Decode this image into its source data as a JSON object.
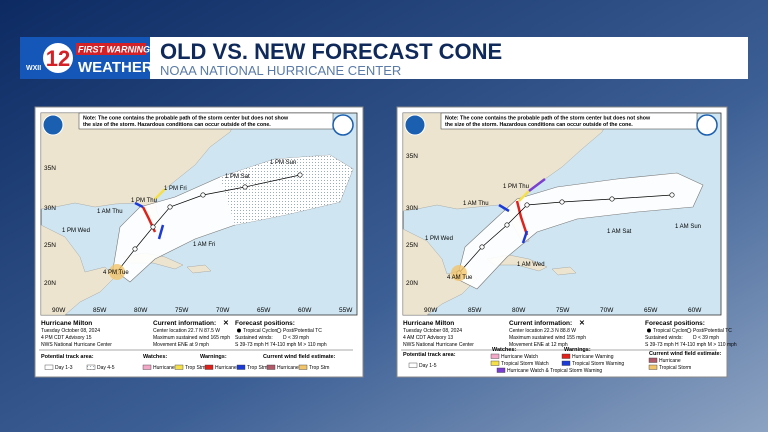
{
  "header": {
    "logo": {
      "station": "WXII",
      "channel": "12",
      "brand_top": "FIRST WARNING",
      "brand_bottom": "WEATHER"
    },
    "title": "OLD VS. NEW FORECAST CONE",
    "subtitle": "NOAA NATIONAL HURRICANE CENTER"
  },
  "panels": [
    {
      "note": [
        "Note: The cone contains the probable path of the storm center but does not show",
        "the size of the storm. Hazardous conditions can occur outside of the cone."
      ],
      "latitude_labels": [
        "35N",
        "30N",
        "25N",
        "20N"
      ],
      "longitude_labels": [
        "90W",
        "85W",
        "80W",
        "75W",
        "70W",
        "65W",
        "60W",
        "55W"
      ],
      "track_labels": [
        "1 PM Sun",
        "1 PM Sat",
        "1 PM Fri",
        "1 PM Thu",
        "1 AM Thu",
        "1 PM Wed",
        "1 AM Fri",
        "4 PM Tue"
      ],
      "storm": [
        "Hurricane Milton",
        "Tuesday October 08, 2024",
        "4 PM CDT Advisory 15",
        "NWS National Hurricane Center"
      ],
      "current": [
        "Current information:",
        "Center location 22.7 N 87.5 W",
        "Maximum sustained wind 165 mph",
        "Movement ENE at 9 mph"
      ],
      "forecast": [
        "Forecast positions:",
        "Tropical Cyclone",
        "Post/Potential TC",
        "Sustained winds:",
        "D < 39 mph",
        "S 39-73 mph  H 74-110 mph  M > 110 mph"
      ],
      "legend": {
        "track_title": "Potential track area:",
        "track_items": [
          "Day 1-3",
          "Day 4-5"
        ],
        "watches_title": "Watches:",
        "watches": [
          "Hurricane",
          "Trop Stm"
        ],
        "warnings_title": "Warnings:",
        "warnings": [
          "Hurricane",
          "Trop Stm"
        ],
        "wind_title": "Current wind field estimate:",
        "wind": [
          "Hurricane",
          "Trop Stm"
        ]
      }
    },
    {
      "note": [
        "Note: The cone contains the probable path of the storm center but does not show",
        "the size of the storm. Hazardous conditions can occur outside of the cone."
      ],
      "latitude_labels": [
        "35N",
        "30N",
        "25N",
        "20N"
      ],
      "longitude_labels": [
        "90W",
        "85W",
        "80W",
        "75W",
        "70W",
        "65W",
        "60W"
      ],
      "track_labels": [
        "1 PM Thu",
        "1 AM Thu",
        "1 PM Wed",
        "1 AM Sat",
        "1 AM Sun",
        "1 AM Wed",
        "4 AM Tue"
      ],
      "storm": [
        "Hurricane Milton",
        "Tuesday October 08, 2024",
        "4 AM CDT Advisory 13",
        "NWS National Hurricane Center"
      ],
      "current": [
        "Current information:",
        "Center location 22.3 N 88.8 W",
        "Maximum sustained wind 155 mph",
        "Movement ENE at 12 mph"
      ],
      "forecast": [
        "Forecast positions:",
        "Tropical Cyclone",
        "Post/Potential TC",
        "Sustained winds:",
        "D < 39 mph",
        "S 39-73 mph  H 74-110 mph  M > 110 mph"
      ],
      "legend": {
        "track_title": "Potential track area:",
        "track_items": [
          "Day 1-5"
        ],
        "watches_title": "Watches:",
        "watches": [
          "Hurricane Watch",
          "Tropical Storm Watch"
        ],
        "warnings_title": "Warnings:",
        "warnings": [
          "Hurricane Warning",
          "Tropical Storm Warning",
          "Hurricane Watch & Tropical Storm Warning"
        ],
        "wind_title": "Current wind field estimate:",
        "wind": [
          "Hurricane",
          "Tropical Storm"
        ]
      }
    }
  ]
}
